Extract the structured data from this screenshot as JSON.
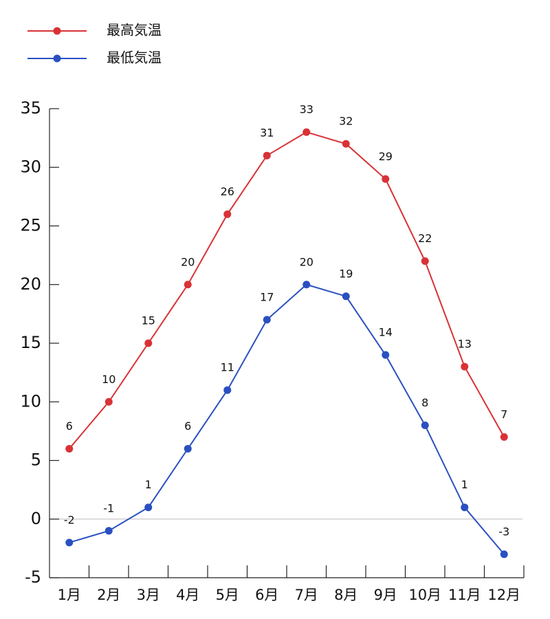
{
  "chart_data": {
    "type": "line",
    "categories": [
      "1月",
      "2月",
      "3月",
      "4月",
      "5月",
      "6月",
      "7月",
      "8月",
      "9月",
      "10月",
      "11月",
      "12月"
    ],
    "series": [
      {
        "name": "最高気温",
        "color": "#d93236",
        "values": [
          6,
          10,
          15,
          20,
          26,
          31,
          33,
          32,
          29,
          22,
          13,
          7
        ]
      },
      {
        "name": "最低気温",
        "color": "#2a50c0",
        "values": [
          -2,
          -1,
          1,
          6,
          11,
          17,
          20,
          19,
          14,
          8,
          1,
          -3
        ]
      }
    ],
    "ylim": [
      -5,
      35
    ],
    "yticks": [
      -5,
      0,
      5,
      10,
      15,
      20,
      25,
      30,
      35
    ],
    "zero_line": true,
    "legend": "top-left",
    "data_labels": true
  }
}
